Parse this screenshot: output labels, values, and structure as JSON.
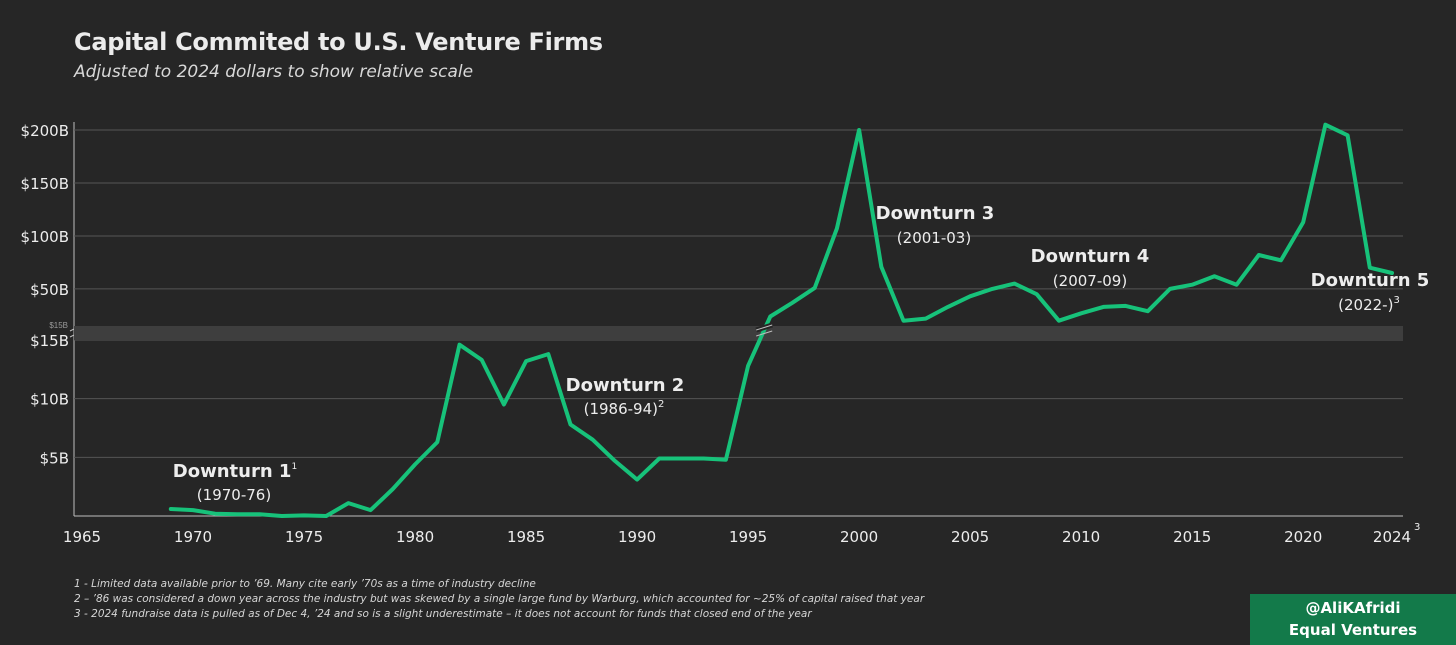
{
  "colors": {
    "background": "#262626",
    "line": "#17c27a",
    "grid": "#555555",
    "brand": "#137a4a"
  },
  "chart_data": {
    "type": "line",
    "title": "Capital Commited to U.S. Venture Firms",
    "subtitle": "Adjusted to 2024 dollars to show relative scale",
    "xlabel": "",
    "ylabel": "",
    "xlim": [
      1965,
      2024
    ],
    "x_ticks": [
      "1965",
      "1970",
      "1975",
      "1980",
      "1985",
      "1990",
      "1995",
      "2000",
      "2005",
      "2010",
      "2015",
      "2020",
      "2024"
    ],
    "x_tick_values": [
      1965,
      1970,
      1975,
      1980,
      1985,
      1990,
      1995,
      2000,
      2005,
      2010,
      2015,
      2020,
      2024
    ],
    "x_last_tick_note": "3",
    "axis_break": {
      "label": "$15B",
      "note": "y-axis is split: lower panel $0B–$15B, upper panel $15B–$200B"
    },
    "lower_ylim": [
      0,
      15
    ],
    "upper_ylim": [
      15,
      200
    ],
    "y_ticks_lower": [
      {
        "label": "$5B",
        "value": 5
      },
      {
        "label": "$10B",
        "value": 10
      },
      {
        "label": "$15B",
        "value": 15
      }
    ],
    "y_ticks_upper": [
      {
        "label": "$50B",
        "value": 50
      },
      {
        "label": "$100B",
        "value": 100
      },
      {
        "label": "$150B",
        "value": 150
      },
      {
        "label": "$200B",
        "value": 200
      }
    ],
    "series": [
      {
        "name": "Capital committed (2024 $B)",
        "x": [
          1969,
          1970,
          1971,
          1972,
          1973,
          1974,
          1975,
          1976,
          1977,
          1978,
          1979,
          1980,
          1981,
          1982,
          1983,
          1984,
          1985,
          1986,
          1987,
          1988,
          1989,
          1990,
          1991,
          1992,
          1993,
          1994,
          1995,
          1996,
          1997,
          1998,
          1999,
          2000,
          2001,
          2002,
          2003,
          2004,
          2005,
          2006,
          2007,
          2008,
          2009,
          2010,
          2011,
          2012,
          2013,
          2014,
          2015,
          2016,
          2017,
          2018,
          2019,
          2020,
          2021,
          2022,
          2023,
          2024
        ],
        "values": [
          0.6,
          0.5,
          0.2,
          0.15,
          0.15,
          0.0,
          0.05,
          0.0,
          1.1,
          0.5,
          2.3,
          4.4,
          6.3,
          14.6,
          13.3,
          9.5,
          13.2,
          13.8,
          7.8,
          6.5,
          4.7,
          3.1,
          4.9,
          4.9,
          4.9,
          4.8,
          12.8,
          24,
          37,
          51,
          107,
          200,
          71,
          20,
          22,
          33,
          43,
          50,
          55,
          45,
          20,
          27,
          33,
          34,
          29,
          50,
          54,
          62,
          54,
          82,
          77,
          113,
          205,
          195,
          70,
          65
        ]
      }
    ],
    "annotations": [
      {
        "title": "Downturn 1",
        "sup": "1",
        "period": "(1970-76)",
        "period_sup": ""
      },
      {
        "title": "Downturn 2",
        "sup": "",
        "period": "(1986-94)",
        "period_sup": "2"
      },
      {
        "title": "Downturn 3",
        "sup": "",
        "period": "(2001-03)",
        "period_sup": ""
      },
      {
        "title": "Downturn 4",
        "sup": "",
        "period": "(2007-09)",
        "period_sup": ""
      },
      {
        "title": "Downturn 5",
        "sup": "",
        "period": "(2022-)",
        "period_sup": "3"
      }
    ]
  },
  "footnotes": [
    "1 - Limited data available prior to ’69. Many cite early ’70s as a time of industry decline",
    "2 – ’86 was considered a down year across the industry but was skewed by a single large fund by Warburg, which accounted for ~25% of capital raised that year",
    "3 - 2024 fundraise data is pulled as of Dec 4, ’24 and so is a slight underestimate – it does not account for funds that closed end of the year"
  ],
  "brand": {
    "handle": "@AliKAfridi",
    "org": "Equal Ventures"
  }
}
